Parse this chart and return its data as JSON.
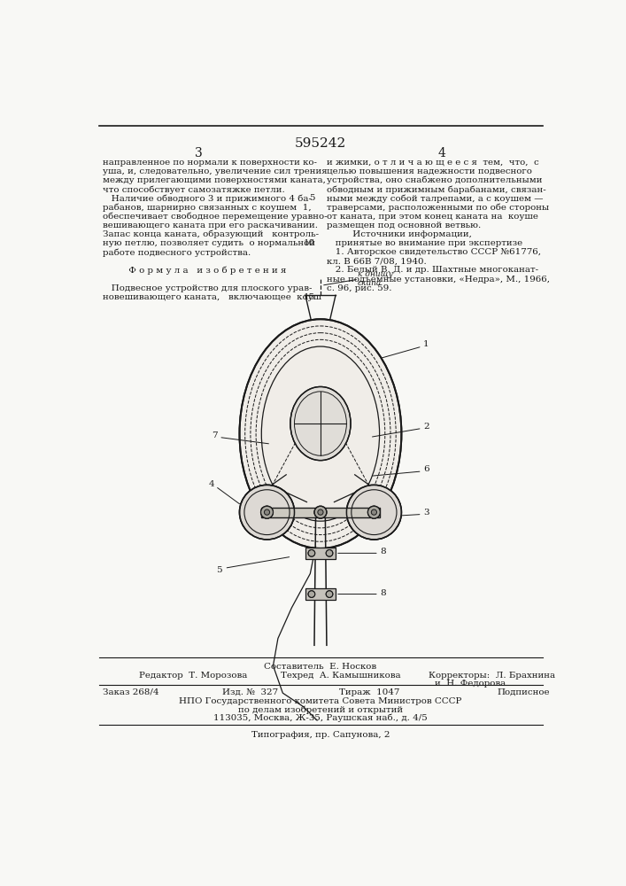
{
  "patent_number": "595242",
  "page_left": "3",
  "page_right": "4",
  "bg_color": "#f8f8f5",
  "text_color": "#1a1a1a",
  "left_column_text": [
    "направленное по нормали к поверхности ко-",
    "уша, и, следовательно, увеличение сил трения",
    "между прилегающими поверхностями каната,",
    "что способствует самозатяжке петли.",
    "   Наличие обводного 3 и прижимного 4 ба-",
    "рабанов, шарнирно связанных с коушем  1,",
    "обеспечивает свободное перемещение уравно-",
    "вешивающего каната при его раскачивании.",
    "Запас конца каната, образующий   контроль-",
    "ную петлю, позволяет судить  о нормальной",
    "работе подвесного устройства.",
    "",
    "         Ф о р м у л а   и з о б р е т е н и я",
    "",
    "   Подвесное устройство для плоского урав-",
    "новешивающего каната,   включающее  коуш"
  ],
  "line_numbers_left": [
    null,
    null,
    null,
    null,
    "5",
    null,
    null,
    null,
    null,
    "10",
    null,
    null,
    null,
    null,
    null,
    "15"
  ],
  "right_column_text": [
    "и жимки, о т л и ч а ю щ е е с я  тем,  что,  с",
    "целью повышения надежности подвесного",
    "устройства, оно снабжено дополнительными",
    "обводным и прижимным барабанами, связан-",
    "ными между собой талрепами, а с коушем —",
    "траверсами, расположенными по обе стороны",
    "от каната, при этом конец каната на  коуше",
    "размещен под основной ветвью.",
    "         Источники информации,",
    "   принятые во внимание при экспертизе",
    "   1. Авторское свидетельство СССР №61776,",
    "кл. В 66В 7/08, 1940.",
    "   2. Белый В. Д. и др. Шахтные многоканат-",
    "ные подъемные установки, «Недра», М., 1966,",
    "с. 96, рис. 59."
  ],
  "footer_text": {
    "composer": "Составитель  Е. Носков",
    "editor": "Редактор  Т. Морозова",
    "techeditor": "Техред  А. Камышникова",
    "correctors": "Корректоры:  Л. Брахнина",
    "correctors2": "и  Н. Федорова",
    "order": "Заказ 268/4",
    "publication": "Изд. №  327",
    "circulation": "Тираж  1047",
    "signed": "Подписное",
    "npo_line1": "НПО Государственного комитета Совета Министров СССР",
    "npo_line2": "по делам изобретений и открытий",
    "npo_line3": "113035, Москва, Ж-35, Раушская наб., д. 4/5",
    "typography": "Типография, пр. Сапунова, 2"
  }
}
